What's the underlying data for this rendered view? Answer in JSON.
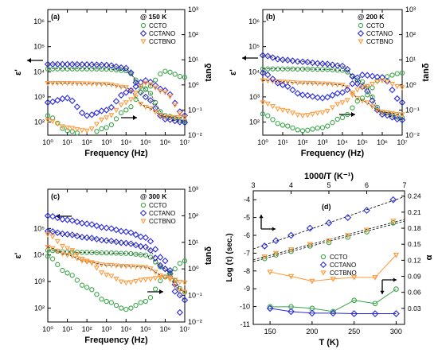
{
  "colors": {
    "ccto": "#3aa64a",
    "cctano": "#2b2bd8",
    "cctbno": "#ff9a3c",
    "axis": "#000000"
  },
  "chart_data": [
    {
      "type": "scatter",
      "panel_label": "(a)",
      "annotation": "@ 150 K",
      "xlabel": "Frequency (Hz)",
      "ylabel_left": "ε'",
      "ylabel_right": "tanδ",
      "xscale": "log",
      "xlim": [
        1,
        10000000
      ],
      "yscale_left": "log",
      "ylim_left": [
        30,
        3000000
      ],
      "yscale_right": "log",
      "ylim_right": [
        0.01,
        1000
      ],
      "x_tick_labels": [
        "10⁰",
        "10¹",
        "10²",
        "10³",
        "10⁴",
        "10⁵",
        "10⁶",
        "10⁷"
      ],
      "y_left_tick_labels": [
        "10²",
        "10³",
        "10⁴",
        "10⁵",
        "10⁶"
      ],
      "y_right_tick_labels": [
        "10⁻²",
        "10⁻¹",
        "10⁰",
        "10¹",
        "10²",
        "10³"
      ],
      "legend": [
        "CCTO",
        "CCTANO",
        "CCTBNO"
      ],
      "series": [
        {
          "name": "CCTO",
          "axis": "eps",
          "x": [
            1,
            10,
            100,
            1000,
            10000,
            100000,
            1000000,
            10000000
          ],
          "y": [
            13000,
            13000,
            13000,
            12800,
            11000,
            2000,
            180,
            110
          ]
        },
        {
          "name": "CCTANO",
          "axis": "eps",
          "x": [
            1,
            10,
            100,
            1000,
            10000,
            100000,
            1000000,
            10000000
          ],
          "y": [
            20000,
            20000,
            19500,
            18500,
            14000,
            1000,
            130,
            95
          ]
        },
        {
          "name": "CCTBNO",
          "axis": "eps",
          "x": [
            1,
            10,
            100,
            1000,
            10000,
            100000,
            1000000,
            10000000
          ],
          "y": [
            3500,
            3500,
            3400,
            3200,
            2400,
            400,
            160,
            150
          ]
        },
        {
          "name": "CCTO",
          "axis": "tan",
          "x": [
            1,
            10,
            100,
            1000,
            10000,
            100000,
            1000000,
            10000000
          ],
          "y": [
            0.06,
            0.015,
            0.01,
            0.02,
            0.1,
            0.7,
            3.5,
            2
          ]
        },
        {
          "name": "CCTANO",
          "axis": "tan",
          "x": [
            1,
            10,
            100,
            1000,
            10000,
            100000,
            1000000,
            10000000
          ],
          "y": [
            0.2,
            0.3,
            0.06,
            0.1,
            0.5,
            1.5,
            0.6,
            0.06
          ]
        },
        {
          "name": "CCTBNO",
          "axis": "tan",
          "x": [
            1,
            10,
            100,
            1000,
            10000,
            100000,
            1000000,
            10000000
          ],
          "y": [
            0.04,
            0.02,
            0.015,
            0.05,
            0.2,
            1.2,
            0.5,
            0.05
          ]
        }
      ]
    },
    {
      "type": "scatter",
      "panel_label": "(b)",
      "annotation": "@ 200 K",
      "xlabel": "Frequency (Hz)",
      "ylabel_left": "ε'",
      "ylabel_right": "tanδ",
      "xscale": "log",
      "xlim": [
        1,
        10000000
      ],
      "yscale_left": "log",
      "ylim_left": [
        30,
        3000000
      ],
      "yscale_right": "log",
      "ylim_right": [
        0.01,
        1000
      ],
      "x_tick_labels": [
        "10⁰",
        "10¹",
        "10²",
        "10³",
        "10⁴",
        "10⁵",
        "10⁶",
        "10⁷"
      ],
      "y_left_tick_labels": [
        "10²",
        "10³",
        "10⁴",
        "10⁵",
        "10⁶"
      ],
      "y_right_tick_labels": [
        "10⁻²",
        "10⁻¹",
        "10⁰",
        "10¹",
        "10²",
        "10³"
      ],
      "legend": [
        "CCTO",
        "CCTANO",
        "CCTBNO"
      ],
      "series": [
        {
          "name": "CCTO",
          "axis": "eps",
          "x": [
            1,
            10,
            100,
            1000,
            10000,
            100000,
            1000000,
            10000000
          ],
          "y": [
            13000,
            13000,
            12800,
            12500,
            11500,
            4000,
            250,
            150
          ]
        },
        {
          "name": "CCTANO",
          "axis": "eps",
          "x": [
            1,
            10,
            100,
            1000,
            10000,
            100000,
            1000000,
            10000000
          ],
          "y": [
            45000,
            30000,
            25000,
            21000,
            17000,
            2500,
            200,
            120
          ]
        },
        {
          "name": "CCTBNO",
          "axis": "eps",
          "x": [
            1,
            10,
            100,
            1000,
            10000,
            100000,
            1000000,
            10000000
          ],
          "y": [
            4500,
            4000,
            3600,
            3400,
            3000,
            700,
            250,
            200
          ]
        },
        {
          "name": "CCTO",
          "axis": "tan",
          "x": [
            1,
            10,
            100,
            1000,
            10000,
            100000,
            1000000,
            10000000
          ],
          "y": [
            0.07,
            0.025,
            0.015,
            0.02,
            0.05,
            0.3,
            2,
            3
          ]
        },
        {
          "name": "CCTANO",
          "axis": "tan",
          "x": [
            1,
            10,
            100,
            1000,
            10000,
            100000,
            1000000,
            10000000
          ],
          "y": [
            3,
            1,
            0.4,
            0.3,
            0.5,
            2.5,
            2,
            0.2
          ]
        },
        {
          "name": "CCTBNO",
          "axis": "tan",
          "x": [
            1,
            10,
            100,
            1000,
            10000,
            100000,
            1000000,
            10000000
          ],
          "y": [
            0.2,
            0.1,
            0.06,
            0.08,
            0.2,
            0.8,
            1.5,
            0.8
          ]
        }
      ]
    },
    {
      "type": "scatter",
      "panel_label": "(c)",
      "annotation": "@ 300 K",
      "xlabel": "Frequency (Hz)",
      "ylabel_left": "ε'",
      "ylabel_right": "tanδ",
      "xscale": "log",
      "xlim": [
        1,
        10000000
      ],
      "yscale_left": "log",
      "ylim_left": [
        30,
        3000000
      ],
      "yscale_right": "log",
      "ylim_right": [
        0.01,
        1000
      ],
      "x_tick_labels": [
        "10⁰",
        "10¹",
        "10²",
        "10³",
        "10⁴",
        "10⁵",
        "10⁶",
        "10⁷"
      ],
      "y_left_tick_labels": [
        "10²",
        "10³",
        "10⁴",
        "10⁵"
      ],
      "y_right_tick_labels": [
        "10⁻²",
        "10⁻¹",
        "10⁰",
        "10¹",
        "10²",
        "10³"
      ],
      "legend": [
        "CCTO",
        "CCTANO",
        "CCTBNO"
      ],
      "series": [
        {
          "name": "CCTO",
          "axis": "eps",
          "x": [
            1,
            10,
            100,
            1000,
            10000,
            100000,
            1000000,
            10000000
          ],
          "y": [
            15000,
            13000,
            12500,
            12000,
            11500,
            10000,
            3000,
            400
          ]
        },
        {
          "name": "CCTANO",
          "axis": "eps",
          "x": [
            1,
            10,
            100,
            1000,
            10000,
            100000,
            1000000,
            10000000
          ],
          "y": [
            80000,
            60000,
            45000,
            35000,
            28000,
            20000,
            3000,
            200
          ]
        },
        {
          "name": "CCTBNO",
          "axis": "eps",
          "x": [
            1,
            10,
            100,
            1000,
            10000,
            100000,
            1000000,
            10000000
          ],
          "y": [
            20000,
            10000,
            5500,
            4200,
            3800,
            3500,
            1500,
            400
          ]
        },
        {
          "name": "CCTO",
          "axis": "tan",
          "x": [
            1,
            10,
            100,
            1000,
            10000,
            100000,
            1000000,
            10000000
          ],
          "y": [
            3,
            0.7,
            0.2,
            0.06,
            0.03,
            0.06,
            0.5,
            2
          ]
        },
        {
          "name": "CCTANO",
          "axis": "tan",
          "x": [
            1,
            10,
            100,
            1000,
            10000,
            100000,
            1000000,
            10000000
          ],
          "y": [
            100,
            70,
            50,
            35,
            25,
            15,
            2,
            0.01
          ]
        },
        {
          "name": "CCTBNO",
          "axis": "tan",
          "x": [
            1,
            10,
            100,
            1000,
            10000,
            100000,
            1000000,
            10000000
          ],
          "y": [
            20,
            6,
            2,
            0.6,
            0.3,
            0.4,
            0.5,
            0.3
          ]
        }
      ]
    },
    {
      "type": "scatter",
      "panel_label": "(d)",
      "xlabel": "T (K)",
      "xlabel_top": "1000/T (K⁻¹)",
      "ylabel_left": "Log (τ) (sec.)",
      "ylabel_right": "α",
      "xlim": [
        130,
        310
      ],
      "xlim_top": [
        3,
        7
      ],
      "ylim_left": [
        -11,
        -3.5
      ],
      "ylim_right": [
        0,
        0.25
      ],
      "x_tick_labels": [
        "150",
        "200",
        "250",
        "300"
      ],
      "x_top_tick_labels": [
        "3",
        "4",
        "5",
        "6",
        "7"
      ],
      "y_left_tick_labels": [
        "-11",
        "-10",
        "-9",
        "-8",
        "-7",
        "-6",
        "-5",
        "-4"
      ],
      "y_right_tick_labels": [
        "0.03",
        "0.06",
        "0.09",
        "0.12",
        "0.15",
        "0.18",
        "0.21",
        "0.24"
      ],
      "legend": [
        "CCTO",
        "CCTANO",
        "CCTBNO"
      ],
      "series": [
        {
          "name": "CCTO",
          "axis": "tau",
          "x": [
            3.3,
            3.6,
            4.0,
            4.5,
            5.0,
            5.5,
            6.0,
            6.7
          ],
          "y": [
            -7.3,
            -7.1,
            -6.9,
            -6.6,
            -6.4,
            -6.1,
            -5.8,
            -5.3
          ]
        },
        {
          "name": "CCTANO",
          "axis": "tau",
          "x": [
            3.3,
            3.6,
            4.0,
            4.5,
            5.0,
            5.5,
            6.0,
            6.7
          ],
          "y": [
            -6.6,
            -6.3,
            -6.0,
            -5.6,
            -5.3,
            -5.0,
            -4.6,
            -4.0
          ]
        },
        {
          "name": "CCTBNO",
          "axis": "tau",
          "x": [
            3.3,
            3.6,
            4.0,
            4.5,
            5.0,
            5.5,
            6.0,
            6.7
          ],
          "y": [
            -7.2,
            -7.0,
            -6.8,
            -6.5,
            -6.3,
            -6.0,
            -5.7,
            -5.2
          ]
        },
        {
          "name": "CCTO",
          "axis": "alpha",
          "x": [
            150,
            175,
            200,
            225,
            250,
            275,
            300
          ],
          "y": [
            0.033,
            0.033,
            0.03,
            0.024,
            0.045,
            0.039,
            0.066
          ]
        },
        {
          "name": "CCTANO",
          "axis": "alpha",
          "x": [
            150,
            175,
            200,
            225,
            250,
            275,
            300
          ],
          "y": [
            0.03,
            0.024,
            0.021,
            0.021,
            0.02,
            0.02,
            0.02
          ]
        },
        {
          "name": "CCTBNO",
          "axis": "alpha",
          "x": [
            150,
            175,
            200,
            225,
            250,
            275,
            300
          ],
          "y": [
            0.098,
            0.09,
            0.081,
            0.085,
            0.088,
            0.088,
            0.13
          ]
        }
      ]
    }
  ]
}
